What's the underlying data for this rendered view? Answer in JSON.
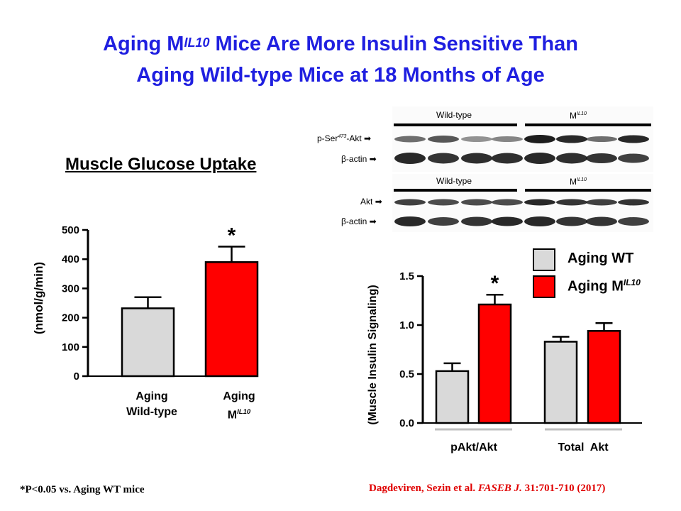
{
  "title": {
    "line1_prefix": "Aging M",
    "line1_sup": "IL10",
    "line1_suffix": " Mice Are More Insulin Sensitive Than",
    "line2": "Aging Wild-type Mice at 18 Months of Age"
  },
  "left_panel": {
    "section_title": "Muscle Glucose Uptake"
  },
  "blot": {
    "group_wt": "Wild-type",
    "group_mil10_prefix": "M",
    "group_mil10_sup": "IL10",
    "row_pser_prefix": "p-Ser",
    "row_pser_sup": "473",
    "row_pser_suffix": "-Akt",
    "row_bactin": "β-actin",
    "row_akt": "Akt",
    "arrow": "➡"
  },
  "legend": {
    "wt": "Aging WT",
    "mil10_prefix": "Aging M",
    "mil10_sup": "IL10",
    "colors": {
      "wt": "#d9d9d9",
      "mil10": "#ff0000"
    }
  },
  "chart_data": [
    {
      "type": "bar",
      "title": "Muscle Glucose Uptake",
      "ylabel": "(nmol/g/min)",
      "ylim": [
        0,
        500
      ],
      "yticks": [
        "0",
        "100",
        "200",
        "300",
        "400",
        "500"
      ],
      "categories": [
        {
          "line1": "Aging",
          "line2": "Wild-type",
          "line2_sup": ""
        },
        {
          "line1": "Aging",
          "line2": "M",
          "line2_sup": "IL10"
        }
      ],
      "values": [
        232,
        390
      ],
      "errors": [
        38,
        53
      ],
      "colors": [
        "#d9d9d9",
        "#ff0000"
      ],
      "significance": [
        "",
        "*"
      ]
    },
    {
      "type": "bar",
      "ylabel": "(Muscle Insulin Signaling)",
      "ylim": [
        0,
        1.5
      ],
      "yticks": [
        "0.0",
        "0.5",
        "1.0",
        "1.5"
      ],
      "categories": [
        "pAkt/Akt",
        "Total  Akt"
      ],
      "series": [
        {
          "name": "Aging WT",
          "values": [
            0.53,
            0.83
          ],
          "errors": [
            0.08,
            0.05
          ],
          "color": "#d9d9d9",
          "significance": [
            "",
            ""
          ]
        },
        {
          "name": "Aging MIL10",
          "values": [
            1.21,
            0.94
          ],
          "errors": [
            0.1,
            0.08
          ],
          "color": "#ff0000",
          "significance": [
            "*",
            ""
          ]
        }
      ]
    }
  ],
  "footnote": {
    "text": "*P<0.05 vs. Aging WT mice"
  },
  "citation": {
    "authors": "Dagdeviren, Sezin et al. ",
    "journal": "FASEB J.",
    "details": " 31:701-710 (2017)"
  }
}
